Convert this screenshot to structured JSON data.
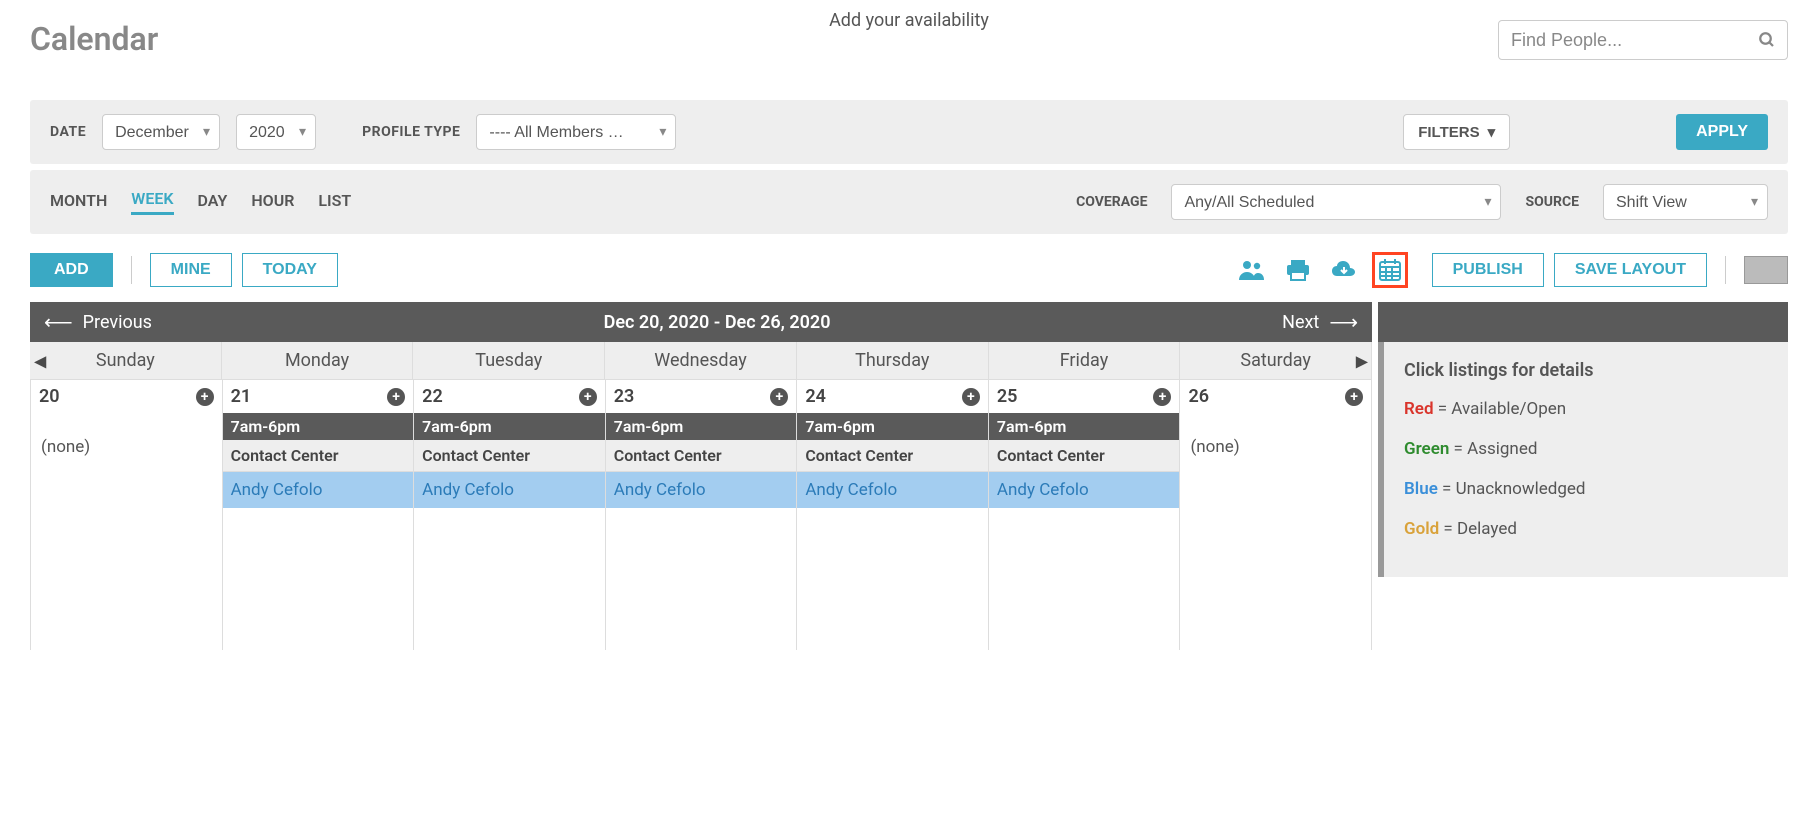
{
  "header": {
    "title": "Calendar",
    "availability_text": "Add your availability",
    "search_placeholder": "Find People..."
  },
  "filters": {
    "date_label": "DATE",
    "month": "December",
    "year": "2020",
    "profile_label": "PROFILE TYPE",
    "profile_value": "---- All Members …",
    "filters_btn": "FILTERS",
    "apply_btn": "APPLY"
  },
  "views": {
    "tabs": [
      "MONTH",
      "WEEK",
      "DAY",
      "HOUR",
      "LIST"
    ],
    "active_tab": "WEEK",
    "coverage_label": "COVERAGE",
    "coverage_value": "Any/All Scheduled",
    "source_label": "SOURCE",
    "source_value": "Shift View"
  },
  "actions": {
    "add": "ADD",
    "mine": "MINE",
    "today": "TODAY",
    "publish": "PUBLISH",
    "save_layout": "SAVE LAYOUT"
  },
  "calendar": {
    "prev": "Previous",
    "next": "Next",
    "range": "Dec 20, 2020 - Dec 26, 2020",
    "days": [
      "Sunday",
      "Monday",
      "Tuesday",
      "Wednesday",
      "Thursday",
      "Friday",
      "Saturday"
    ],
    "cells": [
      {
        "num": "20",
        "none": "(none)"
      },
      {
        "num": "21",
        "time": "7am-6pm",
        "dept": "Contact Center",
        "person": "Andy Cefolo"
      },
      {
        "num": "22",
        "time": "7am-6pm",
        "dept": "Contact Center",
        "person": "Andy Cefolo"
      },
      {
        "num": "23",
        "time": "7am-6pm",
        "dept": "Contact Center",
        "person": "Andy Cefolo"
      },
      {
        "num": "24",
        "time": "7am-6pm",
        "dept": "Contact Center",
        "person": "Andy Cefolo"
      },
      {
        "num": "25",
        "time": "7am-6pm",
        "dept": "Contact Center",
        "person": "Andy Cefolo"
      },
      {
        "num": "26",
        "none": "(none)"
      }
    ]
  },
  "legend": {
    "title": "Click listings for details",
    "items": [
      {
        "color": "red",
        "label": "Red",
        "desc": " = Available/Open"
      },
      {
        "color": "green",
        "label": "Green",
        "desc": " = Assigned"
      },
      {
        "color": "blue",
        "label": "Blue",
        "desc": " = Unacknowledged"
      },
      {
        "color": "gold",
        "label": "Gold",
        "desc": " = Delayed"
      }
    ]
  },
  "colors": {
    "accent": "#3aa9c4",
    "dark_bar": "#5a5a5a",
    "light_bg": "#eeeeee",
    "person_bg": "#a3cdf0",
    "highlight_border": "#ff4422"
  }
}
